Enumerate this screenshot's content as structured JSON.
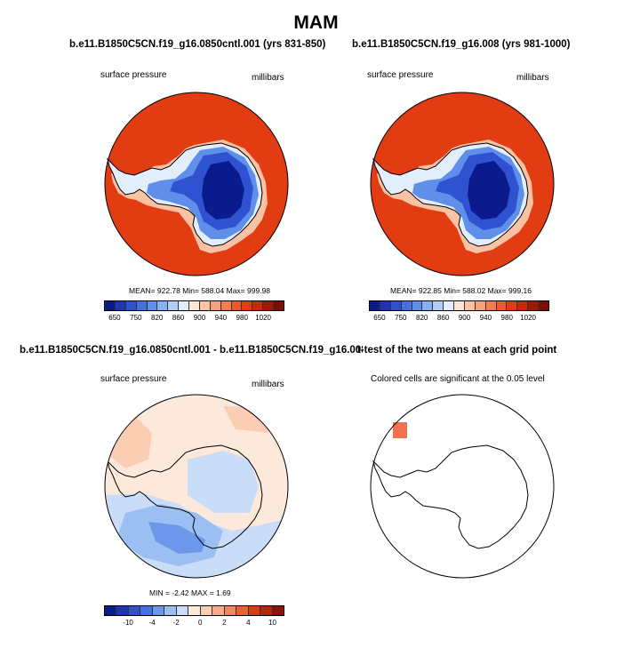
{
  "main_title": "MAM",
  "panels": {
    "p1": {
      "title": "b.e11.B1850C5CN.f19_g16.0850cntl.001 (yrs 831-850)",
      "left_label": "surface pressure",
      "right_label": "millibars",
      "stats": "MEAN= 922.78  Min= 588.04  Max= 999.98"
    },
    "p2": {
      "title": "b.e11.B1850C5CN.f19_g16.008 (yrs 981-1000)",
      "left_label": "surface pressure",
      "right_label": "millibars",
      "stats": "MEAN= 922.85  Min= 588.02  Max= 999.16"
    },
    "p3": {
      "title": "b.e11.B1850C5CN.f19_g16.0850cntl.001 - b.e11.B1850C5CN.f19_g16.008",
      "left_label": "surface pressure",
      "right_label": "millibars",
      "stats": "MIN =  -2.42 MAX =   1.69"
    },
    "p4": {
      "title": "t-test of the two means at each grid point",
      "subtitle": "Colored cells are significant at the 0.05 level"
    }
  },
  "colorbar_abs": {
    "ticks": [
      "650",
      "750",
      "820",
      "860",
      "900",
      "940",
      "980",
      "1020"
    ],
    "tick_boundaries": [
      1,
      3,
      5,
      7,
      9,
      11,
      13,
      15
    ],
    "colors": [
      "#0b1a8c",
      "#1f34b4",
      "#2f52d1",
      "#4571e0",
      "#5f8fe9",
      "#86b0f0",
      "#b3cff6",
      "#e2eefb",
      "#fde6d6",
      "#fbc3a4",
      "#f8a27c",
      "#f47e52",
      "#ee5a2c",
      "#e23c13",
      "#c52a0a",
      "#9e1a07",
      "#781005"
    ]
  },
  "colorbar_diff": {
    "ticks": [
      "-10",
      "-4",
      "-2",
      "0",
      "2",
      "4",
      "10"
    ],
    "tick_boundaries": [
      2,
      4,
      6,
      8,
      10,
      12,
      14
    ],
    "colors": [
      "#0b1a8c",
      "#1f34b4",
      "#2f52d1",
      "#4571e0",
      "#6c97ea",
      "#9cbff3",
      "#c9ddf8",
      "#fde9dc",
      "#fbcdb3",
      "#f8ab89",
      "#f3865e",
      "#ec6034",
      "#dd3a12",
      "#b8230a",
      "#8a1406"
    ]
  },
  "map_colors": {
    "ocean_pressure": "#e23c13",
    "diff_positive": "#fde9dc",
    "diff_positive_strong": "#fbcdb3",
    "diff_negative": "#c9ddf8",
    "diff_negative_mid": "#9cbff3",
    "diff_negative_strong": "#6c97ea",
    "significant": "#f07050"
  }
}
